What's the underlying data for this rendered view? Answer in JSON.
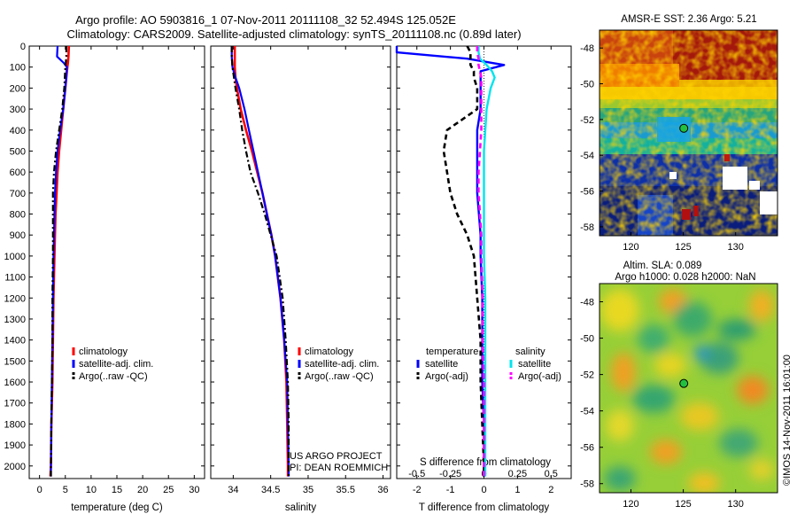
{
  "title_line1": "Argo profile: AO 5903816_1 07-Nov-2011 20111108_32 52.494S 125.052E",
  "title_line2": "Climatology: CARS2009. Satellite-adjusted climatology: synTS_20111108.nc (0.89d later)",
  "colors": {
    "climatology": "#ff0000",
    "satellite": "#0000ff",
    "argo": "#000000",
    "salinity_satellite": "#00e5ee",
    "salinity_argo": "#ff00ff"
  },
  "depth_ticks": [
    "0",
    "100",
    "200",
    "300",
    "400",
    "500",
    "600",
    "700",
    "800",
    "900",
    "1000",
    "1100",
    "1200",
    "1300",
    "1400",
    "1500",
    "1600",
    "1700",
    "1800",
    "1900",
    "2000"
  ],
  "chart_data": [
    {
      "type": "line",
      "xlabel": "temperature (deg C)",
      "ylabel": "",
      "xlim": [
        -2,
        32
      ],
      "ylim": [
        2060,
        0
      ],
      "xticks": [
        "0",
        "5",
        "10",
        "15",
        "20",
        "25",
        "30"
      ],
      "legend": [
        "climatology",
        "satellite-adj. clim.",
        "Argo(..raw -QC)"
      ],
      "legend_position": "bottom-right",
      "depth": [
        0,
        50,
        80,
        100,
        150,
        200,
        300,
        400,
        500,
        600,
        700,
        800,
        900,
        1000,
        1200,
        1400,
        1600,
        1800,
        2000,
        2050
      ],
      "series": [
        {
          "name": "climatology",
          "values": [
            5.7,
            5.6,
            5.5,
            5.4,
            5.2,
            5.0,
            4.6,
            4.2,
            3.8,
            3.5,
            3.3,
            3.1,
            3.0,
            2.9,
            2.7,
            2.6,
            2.5,
            2.3,
            2.2,
            2.1
          ]
        },
        {
          "name": "satellite-adj. clim.",
          "values": [
            3.5,
            3.4,
            4.7,
            5.3,
            5.2,
            5.0,
            4.6,
            4.0,
            3.5,
            3.2,
            3.0,
            2.9,
            2.8,
            2.7,
            2.6,
            2.5,
            2.4,
            2.3,
            2.2,
            2.2
          ]
        },
        {
          "name": "Argo(..raw -QC)",
          "values": [
            5.2,
            5.2,
            5.1,
            5.0,
            4.9,
            4.8,
            4.4,
            3.8,
            3.2,
            2.8,
            2.6,
            2.6,
            2.6,
            2.6,
            2.5,
            2.5,
            2.4,
            2.3,
            2.2,
            2.2
          ]
        }
      ]
    },
    {
      "type": "line",
      "xlabel": "salinity",
      "ylabel": "",
      "xlim": [
        33.7,
        36.1
      ],
      "ylim": [
        2060,
        0
      ],
      "xticks": [
        "34",
        "34.5",
        "35",
        "35.5",
        "36"
      ],
      "legend": [
        "climatology",
        "satellite-adj. clim.",
        "Argo(..raw -QC)"
      ],
      "legend_position": "bottom-right",
      "annotation": [
        "US ARGO PROJECT",
        "PI: DEAN ROEMMICH"
      ],
      "depth": [
        0,
        50,
        100,
        150,
        200,
        300,
        400,
        500,
        600,
        700,
        800,
        900,
        1000,
        1200,
        1400,
        1600,
        1800,
        2000,
        2050
      ],
      "series": [
        {
          "name": "climatology",
          "values": [
            34.02,
            34.02,
            34.02,
            34.03,
            34.05,
            34.1,
            34.17,
            34.25,
            34.32,
            34.39,
            34.45,
            34.51,
            34.56,
            34.63,
            34.68,
            34.71,
            34.72,
            34.73,
            34.73
          ]
        },
        {
          "name": "satellite-adj. clim.",
          "values": [
            33.98,
            33.98,
            33.99,
            34.03,
            34.08,
            34.15,
            34.21,
            34.27,
            34.33,
            34.39,
            34.45,
            34.51,
            34.56,
            34.63,
            34.68,
            34.72,
            34.73,
            34.74,
            34.74
          ]
        },
        {
          "name": "Argo(..raw -QC)",
          "values": [
            33.98,
            33.98,
            33.99,
            34.01,
            34.03,
            34.08,
            34.12,
            34.17,
            34.23,
            34.33,
            34.42,
            34.5,
            34.58,
            34.66,
            34.7,
            34.73,
            34.74,
            34.74,
            34.74
          ]
        }
      ]
    },
    {
      "type": "line",
      "xlabel": "T difference from climatology",
      "x2label": "S difference from climatology",
      "ylabel": "",
      "xlim": [
        -2.6,
        2.6
      ],
      "ylim": [
        2060,
        0
      ],
      "xticks": [
        "-2",
        "-1",
        "0",
        "1",
        "2"
      ],
      "x2ticks": [
        "-0.5",
        "-0.25",
        "0",
        "0.25",
        "0.5"
      ],
      "legend_titles": [
        "temperature",
        "salinity"
      ],
      "legend": [
        "satellite",
        "Argo(-adj)",
        "satellite",
        "Argo(-adj)"
      ],
      "legend_position": "bottom",
      "depth": [
        0,
        30,
        60,
        90,
        120,
        150,
        200,
        300,
        400,
        500,
        600,
        700,
        800,
        900,
        1000,
        1200,
        1400,
        1600,
        1800,
        2000,
        2050
      ],
      "series": [
        {
          "name": "satellite",
          "group": "temperature",
          "values": [
            -4.0,
            -4.0,
            -0.5,
            0.6,
            -0.1,
            -0.1,
            -0.1,
            -0.1,
            -0.2,
            -0.2,
            -0.2,
            -0.2,
            -0.15,
            -0.1,
            -0.1,
            -0.05,
            -0.05,
            -0.05,
            0.0,
            0.0,
            0.0
          ]
        },
        {
          "name": "Argo(-adj)",
          "group": "temperature",
          "values": [
            -0.5,
            -0.4,
            -0.4,
            -0.4,
            -0.3,
            -0.3,
            -0.2,
            -0.2,
            -1.1,
            -1.2,
            -1.1,
            -1.0,
            -0.8,
            -0.5,
            -0.3,
            -0.2,
            -0.1,
            -0.1,
            -0.05,
            0.0,
            0.0
          ]
        },
        {
          "name": "satellite",
          "group": "salinity",
          "values": [
            -0.04,
            -0.04,
            -0.03,
            0.02,
            0.06,
            0.08,
            0.05,
            0.02,
            0.01,
            0.0,
            0.0,
            0.0,
            0.0,
            0.0,
            0.0,
            0.01,
            0.01,
            0.01,
            0.01,
            0.01,
            0.01
          ]
        },
        {
          "name": "Argo(-adj)",
          "group": "salinity",
          "values": [
            -0.05,
            -0.05,
            -0.04,
            -0.04,
            -0.03,
            -0.02,
            -0.02,
            -0.02,
            -0.02,
            -0.03,
            -0.04,
            -0.04,
            -0.03,
            -0.02,
            -0.02,
            -0.01,
            -0.01,
            0.0,
            0.0,
            0.0,
            0.0
          ]
        }
      ]
    },
    {
      "type": "heatmap",
      "title": "AMSR-E SST: 2.36  Argo: 5.21",
      "xlim": [
        117,
        134
      ],
      "ylim": [
        -58.5,
        -47
      ],
      "xticks": [
        "120",
        "125",
        "130"
      ],
      "yticks": [
        "-48",
        "-50",
        "-52",
        "-54",
        "-56",
        "-58"
      ],
      "marker": {
        "lon": 125.05,
        "lat": -52.49
      }
    },
    {
      "type": "heatmap",
      "title_line1": "Altim. SLA: 0.089",
      "title_line2": "Argo h1000: 0.028 h2000: NaN",
      "xlim": [
        117,
        134
      ],
      "ylim": [
        -58.5,
        -47
      ],
      "xticks": [
        "120",
        "125",
        "130"
      ],
      "yticks": [
        "-48",
        "-50",
        "-52",
        "-54",
        "-56",
        "-58"
      ],
      "marker": {
        "lon": 125.05,
        "lat": -52.49
      }
    }
  ],
  "footer_note": "©IMOS 14-Nov-2011 16:01:00"
}
